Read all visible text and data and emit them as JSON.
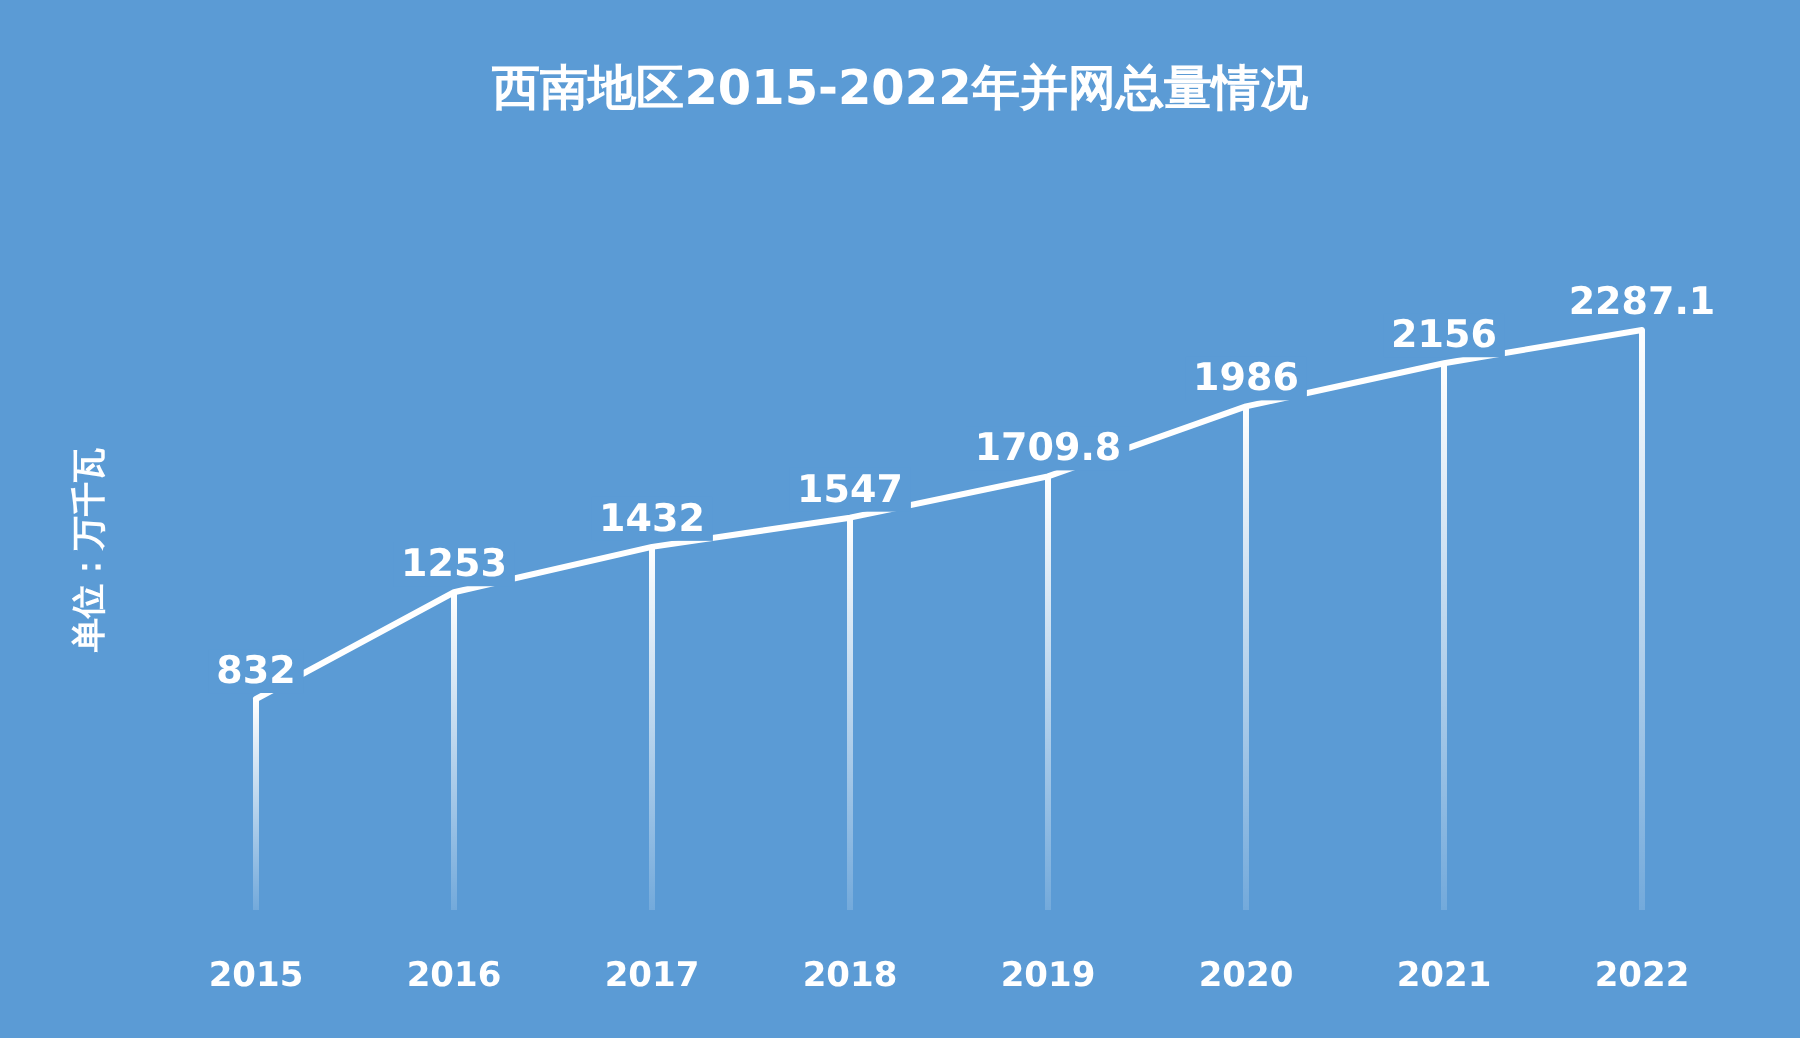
{
  "chart_data": {
    "type": "bar",
    "title": "西南地区2015-2022年并网总量情况",
    "ylabel": "单位：万千瓦",
    "categories": [
      "2015",
      "2016",
      "2017",
      "2018",
      "2019",
      "2020",
      "2021",
      "2022"
    ],
    "series": [
      {
        "color": "#ffffff",
        "values": [
          832,
          1253,
          1432,
          1547,
          1709.8,
          1986,
          2156,
          2287.1
        ]
      },
      {
        "type": "line",
        "color": "#ffffff",
        "values": [
          832,
          1253,
          1432,
          1547,
          1709.8,
          1986,
          2156,
          2287.1
        ],
        "value_labels": [
          "832",
          "1253",
          "1432",
          "1547",
          "1709.8",
          "1986",
          "2156",
          "2287.1"
        ]
      }
    ],
    "marker": "none",
    "line_style": "solid"
  }
}
